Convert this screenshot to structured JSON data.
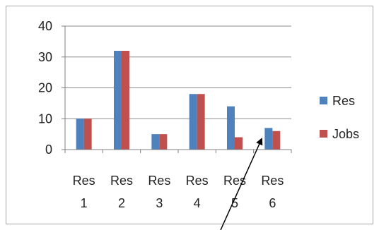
{
  "chart_data": {
    "type": "bar",
    "title": "",
    "xlabel": "",
    "ylabel": "",
    "categories": [
      [
        "Res",
        "1"
      ],
      [
        "Res",
        "2"
      ],
      [
        "Res",
        "3"
      ],
      [
        "Res",
        "4"
      ],
      [
        "Res",
        "5"
      ],
      [
        "Res",
        "6"
      ]
    ],
    "series": [
      {
        "name": "Res",
        "color": "#4f81bd",
        "values": [
          10,
          32,
          5,
          18,
          14,
          7
        ]
      },
      {
        "name": "Jobs",
        "color": "#c0504d",
        "values": [
          10,
          32,
          5,
          18,
          4,
          6
        ]
      }
    ],
    "ylim": [
      0,
      40
    ],
    "yticks": [
      "0",
      "10",
      "20",
      "30",
      "40"
    ],
    "grid": true,
    "legend_position": "right",
    "annotation": "arrow pointing to Res 6 Res bar"
  }
}
